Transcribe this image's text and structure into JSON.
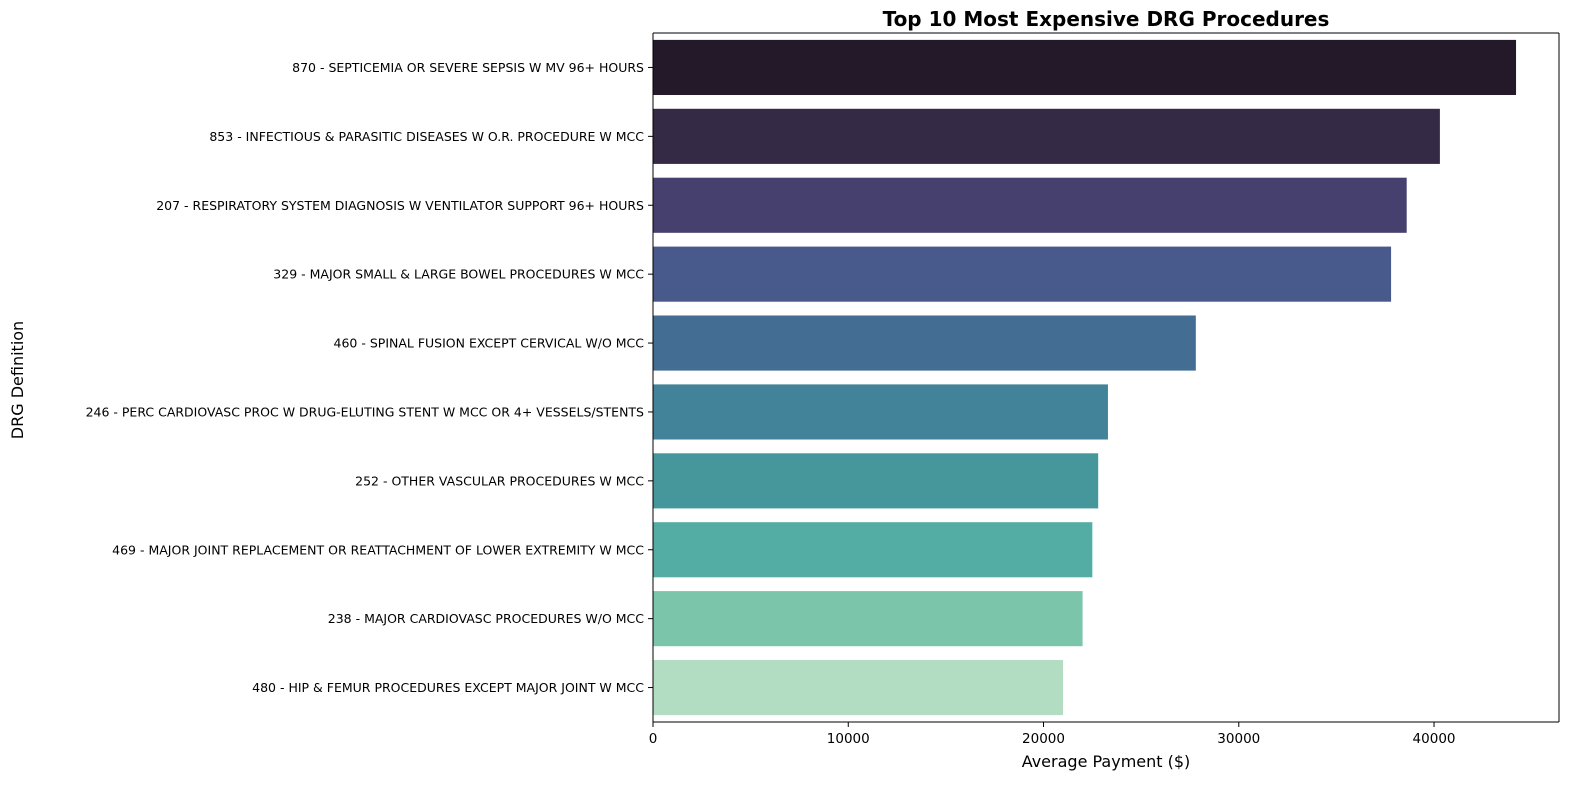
{
  "chart_data": {
    "type": "bar",
    "orientation": "horizontal",
    "title": "Top 10 Most Expensive DRG Procedures",
    "xlabel": "Average Payment ($)",
    "ylabel": "DRG Definition",
    "xlim": [
      0,
      46400
    ],
    "xticks": [
      0,
      10000,
      20000,
      30000,
      40000
    ],
    "xtick_labels": [
      "0",
      "10000",
      "20000",
      "30000",
      "40000"
    ],
    "grid": false,
    "legend": "none",
    "categories": [
      "870 - SEPTICEMIA OR SEVERE SEPSIS W MV 96+ HOURS",
      "853 - INFECTIOUS & PARASITIC DISEASES W O.R. PROCEDURE W MCC",
      "207 - RESPIRATORY SYSTEM DIAGNOSIS W VENTILATOR SUPPORT 96+ HOURS",
      "329 - MAJOR SMALL & LARGE BOWEL PROCEDURES W MCC",
      "460 - SPINAL FUSION EXCEPT CERVICAL W/O MCC",
      "246 - PERC CARDIOVASC PROC W DRUG-ELUTING STENT W MCC OR 4+ VESSELS/STENTS",
      "252 - OTHER VASCULAR PROCEDURES W MCC",
      "469 - MAJOR JOINT REPLACEMENT OR REATTACHMENT OF LOWER EXTREMITY W MCC",
      "238 - MAJOR CARDIOVASC PROCEDURES W/O MCC",
      "480 - HIP & FEMUR PROCEDURES EXCEPT MAJOR JOINT W MCC"
    ],
    "values": [
      44200,
      40300,
      38600,
      37800,
      27800,
      23300,
      22800,
      22500,
      22000,
      21000
    ],
    "colors": [
      "#231928",
      "#352a45",
      "#46406f",
      "#48598b",
      "#436d93",
      "#428399",
      "#46979c",
      "#54ada4",
      "#7bc6aa",
      "#b3ddc3"
    ]
  }
}
